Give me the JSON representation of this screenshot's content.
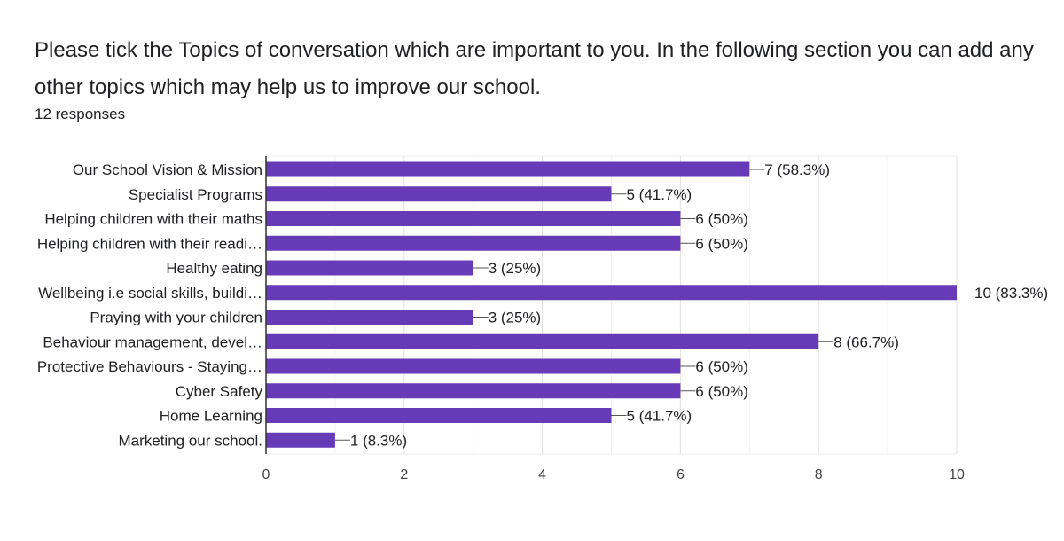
{
  "question": {
    "title": "Please tick the Topics of conversation which are important to you. In the following section you can add any other topics which may help us to improve our school.",
    "responses": "12 responses"
  },
  "chart_data": {
    "type": "bar",
    "orientation": "horizontal",
    "categories": [
      "Our School Vision & Mission",
      "Specialist Programs",
      "Helping children with their maths",
      "Helping children with their readi…",
      "Healthy eating",
      "Wellbeing i.e social skills, buildi…",
      "Praying with your children",
      "Behaviour management, devel…",
      "Protective Behaviours - Staying…",
      "Cyber Safety",
      "Home Learning",
      "Marketing our school."
    ],
    "values": [
      7,
      5,
      6,
      6,
      3,
      10,
      3,
      8,
      6,
      6,
      5,
      1
    ],
    "data_labels": [
      "7 (58.3%)",
      "5 (41.7%)",
      "6 (50%)",
      "6 (50%)",
      "3 (25%)",
      "10 (83.3%)",
      "3 (25%)",
      "8 (66.7%)",
      "6 (50%)",
      "6 (50%)",
      "5 (41.7%)",
      "1 (8.3%)"
    ],
    "xlim": [
      0,
      10
    ],
    "xticks": [
      0,
      2,
      4,
      6,
      8,
      10
    ],
    "grid": true,
    "bar_color": "#673ab7",
    "title": "",
    "xlabel": "",
    "ylabel": ""
  }
}
